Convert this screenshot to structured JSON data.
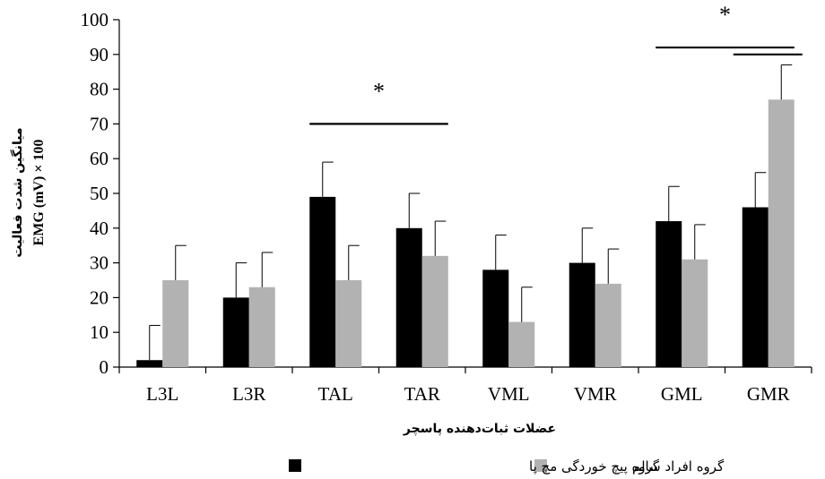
{
  "chart_data": {
    "type": "bar",
    "categories": [
      "L3L",
      "L3R",
      "TAL",
      "TAR",
      "VML",
      "VMR",
      "GML",
      "GMR"
    ],
    "series": [
      {
        "name": "گروه پیچ خوردگی مچ پا",
        "color": "#000000",
        "values": [
          2,
          20,
          49,
          40,
          28,
          30,
          42,
          46
        ],
        "errors": [
          10,
          10,
          10,
          10,
          10,
          10,
          10,
          10
        ]
      },
      {
        "name": "گروه افراد سالم",
        "color": "#b2b2b2",
        "values": [
          25,
          23,
          25,
          32,
          13,
          24,
          31,
          77
        ],
        "errors": [
          10,
          10,
          10,
          10,
          10,
          10,
          10,
          10
        ]
      }
    ],
    "ylim": [
      0,
      100
    ],
    "yticks": [
      0,
      10,
      20,
      30,
      40,
      50,
      60,
      70,
      80,
      90,
      100
    ],
    "ylabel_line1": "میانگین شدت فعالیت",
    "ylabel_line2": "EMG (mV) × 100",
    "xlabel": "عضلات ثبات‌دهنده پاسچر",
    "significance_marker": "*",
    "significance": [
      {
        "from": "TAL",
        "to": "TAR",
        "value": 70,
        "label": "*"
      },
      {
        "from": "GML",
        "to": "GMR",
        "value": 92,
        "label": "*"
      },
      {
        "from": "GMR",
        "to": "GMR",
        "value": 90
      }
    ],
    "grid": false,
    "legend_position": "bottom"
  }
}
